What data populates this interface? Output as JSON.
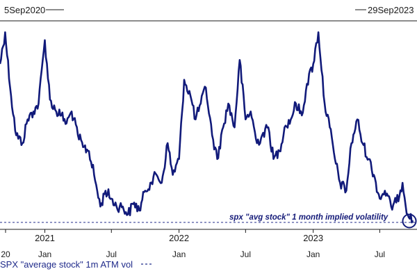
{
  "chart_data": {
    "type": "line",
    "date_range": {
      "start_label": "5Sep2020",
      "end_label": "29Sep2023"
    },
    "x_tick_labels": [
      "20",
      "Jan",
      "Jul",
      "Jan",
      "Jul",
      "Jan",
      "Jul"
    ],
    "year_labels": [
      "2021",
      "2022",
      "2023"
    ],
    "series": [
      {
        "name": "SPX \"average stock\" 1m ATM vol",
        "color": "#111a7a",
        "x": [
          "2020-09-01",
          "2020-09-15",
          "2020-10-01",
          "2020-10-15",
          "2020-11-01",
          "2020-11-15",
          "2020-12-01",
          "2020-12-15",
          "2021-01-01",
          "2021-01-15",
          "2021-02-01",
          "2021-02-15",
          "2021-03-01",
          "2021-03-15",
          "2021-04-01",
          "2021-04-15",
          "2021-05-01",
          "2021-05-15",
          "2021-06-01",
          "2021-06-15",
          "2021-07-01",
          "2021-07-15",
          "2021-08-01",
          "2021-08-15",
          "2021-09-01",
          "2021-09-15",
          "2021-10-01",
          "2021-10-15",
          "2021-11-01",
          "2021-11-15",
          "2021-12-01",
          "2021-12-15",
          "2022-01-01",
          "2022-01-15",
          "2022-02-01",
          "2022-02-15",
          "2022-03-01",
          "2022-03-15",
          "2022-04-01",
          "2022-04-15",
          "2022-05-01",
          "2022-05-15",
          "2022-06-01",
          "2022-06-15",
          "2022-07-01",
          "2022-07-15",
          "2022-08-01",
          "2022-08-15",
          "2022-09-01",
          "2022-09-15",
          "2022-10-01",
          "2022-10-15",
          "2022-11-01",
          "2022-11-15",
          "2022-12-01",
          "2022-12-15",
          "2023-01-01",
          "2023-01-15",
          "2023-02-01",
          "2023-02-15",
          "2023-03-01",
          "2023-03-15",
          "2023-04-01",
          "2023-04-15",
          "2023-05-01",
          "2023-05-15",
          "2023-06-01",
          "2023-06-15",
          "2023-07-01",
          "2023-07-15",
          "2023-08-01",
          "2023-08-15",
          "2023-09-01",
          "2023-09-15",
          "2023-09-29"
        ],
        "values": [
          40,
          48,
          32,
          22,
          20,
          26,
          28,
          30,
          46,
          31,
          28,
          27,
          25,
          28,
          22,
          19,
          18,
          12,
          4,
          8,
          6,
          4,
          4,
          2,
          5,
          3,
          8,
          10,
          12,
          10,
          20,
          12,
          16,
          36,
          32,
          26,
          30,
          34,
          22,
          16,
          24,
          30,
          24,
          41,
          26,
          28,
          20,
          22,
          24,
          16,
          18,
          24,
          26,
          30,
          27,
          35,
          40,
          48,
          30,
          24,
          16,
          10,
          8,
          20,
          26,
          20,
          16,
          12,
          6,
          8,
          4,
          5,
          10,
          2,
          0.5
        ]
      }
    ],
    "annotation": "spx \"avg stock\" 1 month implied volatility",
    "legend": {
      "label": "SPX \"average stock\" 1m ATM vol",
      "placement": "bottom"
    },
    "reference_line": {
      "style": "dashed",
      "value": 0
    },
    "grid": false
  }
}
